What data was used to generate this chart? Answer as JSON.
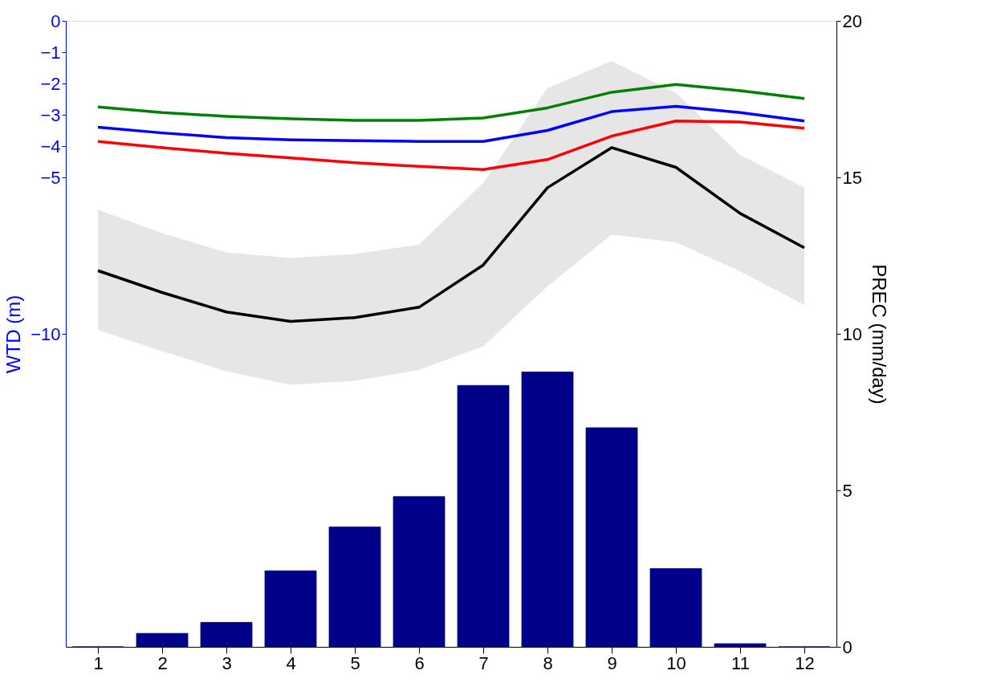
{
  "chart_data": {
    "type": "line",
    "ylabel": "WTD (m)",
    "y2label": "PREC (mm/day)",
    "x": [
      1,
      2,
      3,
      4,
      5,
      6,
      7,
      8,
      9,
      10,
      11,
      12
    ],
    "xlim": [
      0.5,
      12.5
    ],
    "xticks": [
      1,
      2,
      3,
      4,
      5,
      6,
      7,
      8,
      9,
      10,
      11,
      12
    ],
    "ylim": [
      -20,
      0
    ],
    "yticks": [
      0,
      -1,
      -2,
      -3,
      -4,
      -5,
      -10
    ],
    "y2lim": [
      0,
      20
    ],
    "y2ticks": [
      0,
      5,
      10,
      15,
      20
    ],
    "grid": false,
    "marker": "none",
    "line_style": "solid",
    "series": [
      {
        "type": "bar",
        "axis": "y2",
        "color": "#000088",
        "values": [
          0,
          0.43,
          0.78,
          2.43,
          3.83,
          4.8,
          8.35,
          8.78,
          7.0,
          2.5,
          0.1,
          0
        ]
      },
      {
        "axis": "y",
        "color": "#008000",
        "values": [
          -2.75,
          -2.93,
          -3.05,
          -3.13,
          -3.18,
          -3.18,
          -3.1,
          -2.78,
          -2.28,
          -2.03,
          -2.23,
          -2.48
        ]
      },
      {
        "axis": "y",
        "color": "#0000ff",
        "values": [
          -3.4,
          -3.58,
          -3.73,
          -3.8,
          -3.83,
          -3.85,
          -3.85,
          -3.5,
          -2.9,
          -2.73,
          -2.93,
          -3.2
        ]
      },
      {
        "axis": "y",
        "color": "#ff0000",
        "values": [
          -3.85,
          -4.05,
          -4.23,
          -4.38,
          -4.53,
          -4.65,
          -4.75,
          -4.43,
          -3.68,
          -3.2,
          -3.23,
          -3.43
        ]
      },
      {
        "axis": "y",
        "color": "#000000",
        "values": [
          -7.98,
          -8.68,
          -9.3,
          -9.6,
          -9.48,
          -9.15,
          -7.8,
          -5.33,
          -4.05,
          -4.68,
          -6.15,
          -7.25
        ],
        "upper": [
          -6.03,
          -6.78,
          -7.4,
          -7.58,
          -7.45,
          -7.15,
          -5.18,
          -2.15,
          -1.28,
          -2.3,
          -4.28,
          -5.33
        ],
        "lower": [
          -9.88,
          -10.55,
          -11.2,
          -11.63,
          -11.5,
          -11.15,
          -10.4,
          -8.48,
          -6.83,
          -7.08,
          -8.0,
          -9.08
        ]
      }
    ]
  }
}
